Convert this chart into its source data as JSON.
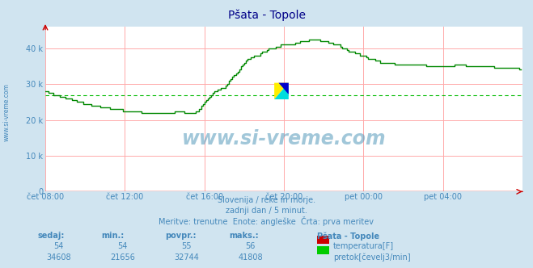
{
  "title": "Pšata - Topole",
  "bg_color": "#d0e4f0",
  "plot_bg_color": "#ffffff",
  "grid_color": "#ffaaaa",
  "avg_line_color": "#00bb00",
  "avg_line_value": 27000,
  "x_tick_labels": [
    "čet 08:00",
    "čet 12:00",
    "čet 16:00",
    "čet 20:00",
    "pet 00:00",
    "pet 04:00"
  ],
  "y_tick_values": [
    0,
    10000,
    20000,
    30000,
    40000
  ],
  "ylim": [
    0,
    46000
  ],
  "subtitle1": "Slovenija / reke in morje.",
  "subtitle2": "zadnji dan / 5 minut.",
  "subtitle3": "Meritve: trenutne  Enote: angleške  Črta: prva meritev",
  "text_color": "#4488bb",
  "title_color": "#000088",
  "watermark": "www.si-vreme.com",
  "table_headers": [
    "sedaj:",
    "min.:",
    "povpr.:",
    "maks.:"
  ],
  "table_row1": [
    "54",
    "54",
    "55",
    "56"
  ],
  "table_row2": [
    "34608",
    "21656",
    "32744",
    "41808"
  ],
  "legend_title": "Pšata - Topole",
  "legend_row1": "temperatura[F]",
  "legend_row2": "pretok[čevelj3/min]",
  "legend_color1": "#cc0000",
  "legend_color2": "#00cc00",
  "flow_color": "#008800",
  "tick_positions": [
    0,
    48,
    96,
    144,
    192,
    240
  ],
  "n_points": 288
}
